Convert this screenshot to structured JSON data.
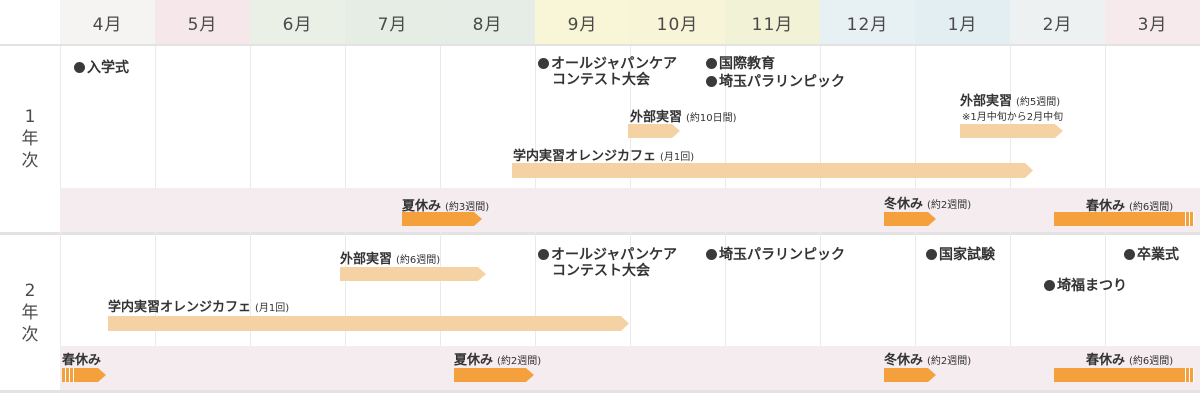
{
  "months": [
    {
      "label": "4月",
      "color": "#f6f3f3"
    },
    {
      "label": "5月",
      "color": "#f6e8ea"
    },
    {
      "label": "6月",
      "color": "#ebf0e6"
    },
    {
      "label": "7月",
      "color": "#e6ede4"
    },
    {
      "label": "8月",
      "color": "#e5ede6"
    },
    {
      "label": "9月",
      "color": "#f8f6d6"
    },
    {
      "label": "10月",
      "color": "#f7f4d8"
    },
    {
      "label": "11月",
      "color": "#f1f2d6"
    },
    {
      "label": "12月",
      "color": "#e7f0f3"
    },
    {
      "label": "1月",
      "color": "#e3eef3"
    },
    {
      "label": "2月",
      "color": "#eef1f1"
    },
    {
      "label": "3月",
      "color": "#f6eaec"
    }
  ],
  "year1": {
    "label": "1\n年\n次",
    "events": {
      "entrance": "入学式",
      "all_japan_line1": "オールジャパンケア",
      "all_japan_line2": "コンテスト大会",
      "intl_edu": "国際教育",
      "saitama_para": "埼玉パラリンピック"
    },
    "external_10": {
      "title": "外部実習",
      "sub": "(約10日間)"
    },
    "external_5": {
      "title": "外部実習",
      "sub": "(約5週間)",
      "note": "※1月中旬から2月中旬"
    },
    "cafe": {
      "title": "学内実習オレンジカフェ",
      "sub": "(月1回)"
    },
    "summer": {
      "title": "夏休み",
      "sub": "(約3週間)"
    },
    "winter": {
      "title": "冬休み",
      "sub": "(約2週間)"
    },
    "spring": {
      "title": "春休み",
      "sub": "(約6週間)"
    }
  },
  "year2": {
    "label": "2\n年\n次",
    "events": {
      "all_japan_line1": "オールジャパンケア",
      "all_japan_line2": "コンテスト大会",
      "saitama_para": "埼玉パラリンピック",
      "national_exam": "国家試験",
      "graduation": "卒業式",
      "festival": "埼福まつり"
    },
    "external_6": {
      "title": "外部実習",
      "sub": "(約6週間)"
    },
    "cafe": {
      "title": "学内実習オレンジカフェ",
      "sub": "(月1回)"
    },
    "spring_start": {
      "title": "春休み"
    },
    "summer": {
      "title": "夏休み",
      "sub": "(約2週間)"
    },
    "winter": {
      "title": "冬休み",
      "sub": "(約2週間)"
    },
    "spring": {
      "title": "春休み",
      "sub": "(約6週間)"
    }
  }
}
